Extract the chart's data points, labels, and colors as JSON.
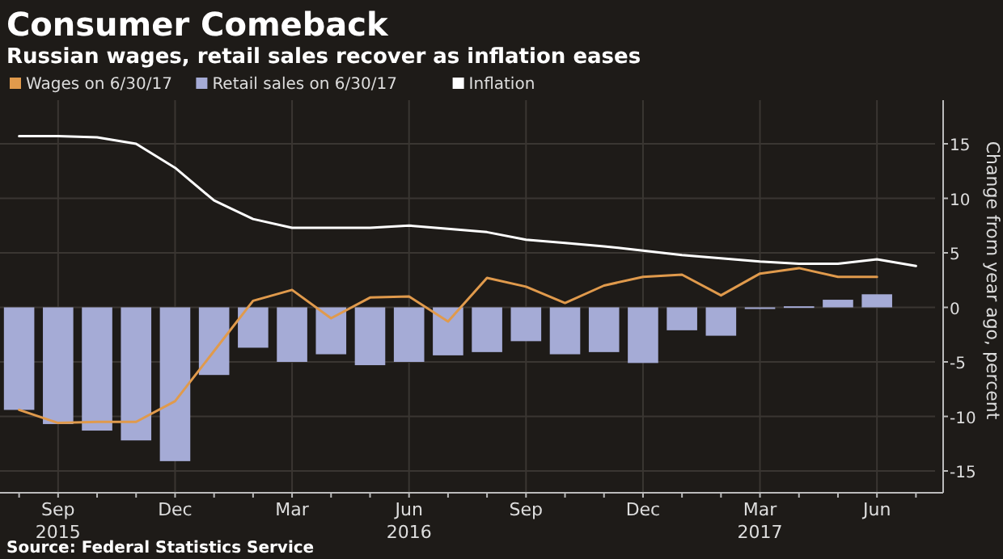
{
  "chart_data": {
    "type": "bar",
    "title": "Consumer Comeback",
    "subtitle": "Russian wages, retail sales recover as inflation eases",
    "ylabel": "Change from year ago, percent",
    "annotations": [
      "Source: Federal Statistics Service"
    ],
    "categories": [
      null,
      "Sep\n2015",
      null,
      null,
      "Dec",
      null,
      null,
      "Mar",
      null,
      null,
      "Jun\n2016",
      null,
      null,
      "Sep",
      null,
      null,
      "Dec",
      null,
      null,
      "Mar\n2017",
      null,
      null,
      "Jun",
      null
    ],
    "series": [
      {
        "name": "Wages on 6/30/17",
        "type": "line",
        "color": "#e09a4c",
        "values": [
          -9.4,
          -10.6,
          -10.5,
          -10.5,
          -8.6,
          -4.0,
          0.6,
          1.6,
          -1.0,
          0.9,
          1.0,
          -1.3,
          2.7,
          1.9,
          0.4,
          2.0,
          2.8,
          3.0,
          1.1,
          3.1,
          3.6,
          2.8,
          2.8,
          null
        ]
      },
      {
        "name": "Retail sales on 6/30/17",
        "color": "#a5abd6",
        "values": [
          -9.4,
          -10.7,
          -11.3,
          -12.2,
          -14.1,
          -6.2,
          -3.7,
          -5.0,
          -4.3,
          -5.3,
          -5.0,
          -4.4,
          -4.1,
          -3.1,
          -4.3,
          -4.1,
          -5.1,
          -2.1,
          -2.6,
          -0.1,
          0.1,
          0.7,
          1.2,
          null
        ]
      },
      {
        "name": "Inflation",
        "type": "line",
        "color": "#ffffff",
        "values": [
          15.7,
          15.7,
          15.6,
          15.0,
          12.8,
          9.8,
          8.1,
          7.3,
          7.3,
          7.3,
          7.5,
          7.2,
          6.9,
          6.2,
          5.9,
          5.6,
          5.2,
          4.8,
          4.5,
          4.2,
          4.0,
          4.0,
          4.4,
          3.8
        ]
      }
    ],
    "ylim": [
      -17,
      19
    ],
    "yticks": [
      -15,
      -10,
      -5,
      0,
      5,
      10,
      15
    ],
    "grid": true,
    "legend": "top left",
    "line_style": "solid",
    "marker": "none"
  }
}
